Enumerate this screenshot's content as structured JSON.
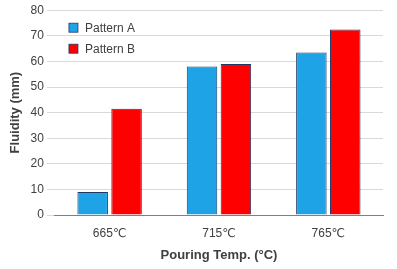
{
  "chart_data": {
    "type": "bar",
    "x_label": "Pouring Temp. (°C)",
    "y_label": "Fluidity (mm)",
    "categories": [
      "665℃",
      "715℃",
      "765℃"
    ],
    "series": [
      {
        "name": "Pattern A",
        "color": "#1ea4e6",
        "values": [
          9,
          58,
          63.5
        ]
      },
      {
        "name": "Pattern B",
        "color": "#ff0000",
        "values": [
          41.5,
          59,
          72.5
        ]
      }
    ],
    "ylim": [
      0,
      80
    ],
    "yticks": [
      0,
      10,
      20,
      30,
      40,
      50,
      60,
      70,
      80
    ],
    "grid": true,
    "legend": "upper left"
  }
}
